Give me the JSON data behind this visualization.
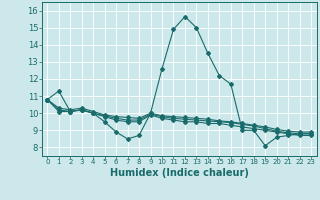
{
  "xlabel": "Humidex (Indice chaleur)",
  "xlim": [
    -0.5,
    23.5
  ],
  "ylim": [
    7.5,
    16.5
  ],
  "yticks": [
    8,
    9,
    10,
    11,
    12,
    13,
    14,
    15,
    16
  ],
  "xticks": [
    0,
    1,
    2,
    3,
    4,
    5,
    6,
    7,
    8,
    9,
    10,
    11,
    12,
    13,
    14,
    15,
    16,
    17,
    18,
    19,
    20,
    21,
    22,
    23
  ],
  "bg_color": "#cce8ea",
  "line_color": "#1a6b6b",
  "lines": [
    [
      10.8,
      11.3,
      10.1,
      10.2,
      10.0,
      9.5,
      8.9,
      8.5,
      8.7,
      10.0,
      12.6,
      14.9,
      15.65,
      15.0,
      13.5,
      12.2,
      11.7,
      9.0,
      9.0,
      8.1,
      8.6,
      8.7,
      8.8,
      8.8
    ],
    [
      10.8,
      10.1,
      10.1,
      10.2,
      10.0,
      9.8,
      9.6,
      9.5,
      9.5,
      9.9,
      9.7,
      9.6,
      9.5,
      9.5,
      9.4,
      9.4,
      9.3,
      9.2,
      9.1,
      9.0,
      8.9,
      8.8,
      8.7,
      8.7
    ],
    [
      10.8,
      10.3,
      10.2,
      10.3,
      10.1,
      9.9,
      9.8,
      9.75,
      9.7,
      10.0,
      9.85,
      9.8,
      9.75,
      9.7,
      9.65,
      9.55,
      9.5,
      9.4,
      9.3,
      9.2,
      9.05,
      8.95,
      8.9,
      8.9
    ],
    [
      10.8,
      10.2,
      10.1,
      10.2,
      10.0,
      9.85,
      9.7,
      9.6,
      9.6,
      9.95,
      9.8,
      9.7,
      9.65,
      9.6,
      9.55,
      9.5,
      9.45,
      9.35,
      9.25,
      9.1,
      8.95,
      8.85,
      8.8,
      8.8
    ]
  ]
}
